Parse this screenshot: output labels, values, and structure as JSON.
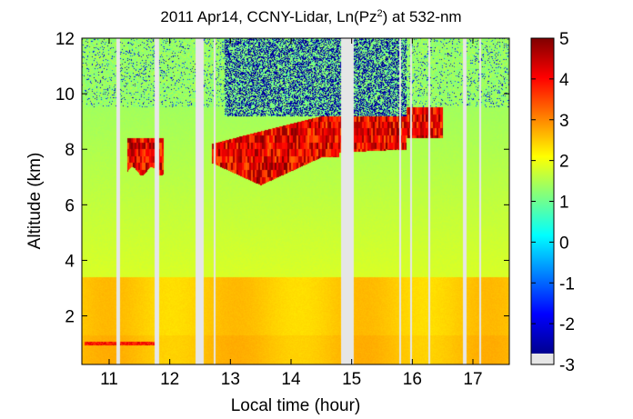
{
  "chart_data": {
    "type": "heatmap",
    "title": {
      "main": "2011 Apr14, CCNY-Lidar, Ln(Pz",
      "sup": "2",
      "tail": ") at 532-nm"
    },
    "xlabel": "Local time (hour)",
    "ylabel": "Altitude (km)",
    "xlim": [
      10.55,
      17.6
    ],
    "ylim": [
      0.25,
      12.0
    ],
    "xticks": [
      11,
      12,
      13,
      14,
      15,
      16,
      17
    ],
    "yticks": [
      2,
      4,
      6,
      8,
      10,
      12
    ],
    "colorbar": {
      "range": [
        -3,
        5
      ],
      "ticks": [
        5,
        4,
        3,
        2,
        1,
        0,
        -1,
        -2,
        -3
      ],
      "colormap": "jet"
    },
    "data_gaps_hours": [
      [
        11.12,
        11.18
      ],
      [
        11.75,
        11.82
      ],
      [
        12.43,
        12.56
      ],
      [
        12.72,
        12.76
      ],
      [
        14.82,
        15.04
      ],
      [
        15.78,
        15.82
      ],
      [
        15.96,
        15.99
      ],
      [
        16.26,
        16.29
      ],
      [
        16.83,
        16.9
      ],
      [
        17.1,
        17.13
      ]
    ],
    "features": {
      "boundary_layer_top_km": 3.4,
      "aerosol_layer_km": 1.0,
      "cirrus_cloud": {
        "time_hours": [
          11.3,
          16.5
        ],
        "altitude_km": [
          6.6,
          9.6
        ],
        "peak_value": 5
      },
      "noisy_region_above_km": 9.2
    }
  }
}
